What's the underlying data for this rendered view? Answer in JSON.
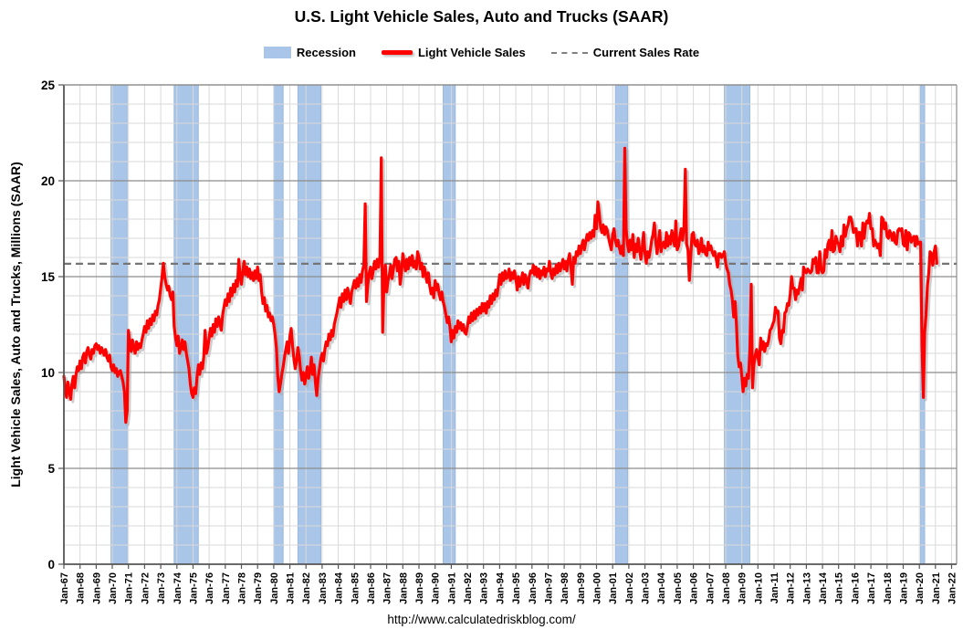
{
  "title": "U.S. Light Vehicle Sales, Auto and Trucks (SAAR)",
  "footer_url": "http://www.calculatedriskblog.com/",
  "legend": [
    {
      "label": "Recession",
      "type": "band"
    },
    {
      "label": "Light Vehicle Sales",
      "type": "line"
    },
    {
      "label": "Current Sales Rate",
      "type": "dashed"
    }
  ],
  "colors": {
    "line": "#FF0000",
    "line_shadow": "#A8A8A8",
    "recession_fill": "#A9C5E8",
    "recession_edge": "#9BB8DE",
    "dashed": "#757575",
    "grid_minor": "#D9D9D9",
    "grid_major": "#8C8C8C",
    "axis": "#555555",
    "text": "#000000"
  },
  "chart_data": {
    "type": "line",
    "title": "U.S. Light Vehicle Sales, Auto and Trucks (SAAR)",
    "xlabel": "",
    "ylabel": "Light Vehicle Sales, Auto and Trucks, Millions (SAAR)",
    "ylim": [
      0,
      25
    ],
    "y_major_ticks": [
      0,
      5,
      10,
      15,
      20,
      25
    ],
    "y_minor_step": 1,
    "grid": "both",
    "legend_position": "top",
    "x_domain": [
      1967.0,
      2022.31
    ],
    "x_tick_labels": [
      "Jan-67",
      "Jan-68",
      "Jan-69",
      "Jan-70",
      "Jan-71",
      "Jan-72",
      "Jan-73",
      "Jan-74",
      "Jan-75",
      "Jan-76",
      "Jan-77",
      "Jan-78",
      "Jan-79",
      "Jan-80",
      "Jan-81",
      "Jan-82",
      "Jan-83",
      "Jan-84",
      "Jan-85",
      "Jan-86",
      "Jan-87",
      "Jan-88",
      "Jan-89",
      "Jan-90",
      "Jan-91",
      "Jan-92",
      "Jan-93",
      "Jan-94",
      "Jan-95",
      "Jan-96",
      "Jan-97",
      "Jan-98",
      "Jan-99",
      "Jan-00",
      "Jan-01",
      "Jan-02",
      "Jan-03",
      "Jan-04",
      "Jan-05",
      "Jan-06",
      "Jan-07",
      "Jan-08",
      "Jan-09",
      "Jan-10",
      "Jan-11",
      "Jan-12",
      "Jan-13",
      "Jan-14",
      "Jan-15",
      "Jan-16",
      "Jan-17",
      "Jan-18",
      "Jan-19",
      "Jan-20",
      "Jan-21",
      "Jan-22"
    ],
    "current_sales_rate": 15.67,
    "recessions": [
      [
        1969.92,
        1970.92
      ],
      [
        1973.83,
        1975.33
      ],
      [
        1980.0,
        1980.58
      ],
      [
        1981.5,
        1982.92
      ],
      [
        1990.5,
        1991.25
      ],
      [
        2001.17,
        2001.92
      ],
      [
        2007.92,
        2009.5
      ],
      [
        2020.08,
        2020.33
      ]
    ],
    "series": [
      {
        "name": "Light Vehicle Sales",
        "cadence": "monthly",
        "units": "millions, SAAR",
        "values_by_year": {
          "1967": [
            9.8,
            9.1,
            8.7,
            9.5,
            9.0,
            8.6,
            9.4,
            9.8,
            9.2,
            9.9,
            10.3,
            10.1
          ],
          "1968": [
            10.6,
            10.2,
            10.8,
            11.0,
            10.5,
            11.1,
            11.3,
            10.9,
            10.7,
            11.2,
            11.0,
            11.4
          ],
          "1969": [
            11.5,
            11.2,
            11.4,
            11.0,
            11.3,
            11.1,
            10.9,
            11.2,
            10.8,
            10.6,
            10.9,
            10.3
          ],
          "1970": [
            10.1,
            10.4,
            10.0,
            10.2,
            9.8,
            10.0,
            10.1,
            9.8,
            9.5,
            9.0,
            7.4,
            8.0
          ],
          "1971": [
            12.2,
            11.5,
            11.1,
            11.7,
            11.3,
            11.0,
            11.6,
            11.2,
            11.5,
            11.3,
            11.7,
            12.0
          ],
          "1972": [
            12.4,
            12.1,
            12.7,
            12.3,
            12.8,
            12.5,
            13.0,
            12.7,
            13.2,
            13.0,
            13.5,
            13.8
          ],
          "1973": [
            14.4,
            15.0,
            15.7,
            15.0,
            14.6,
            14.3,
            14.5,
            14.0,
            13.8,
            14.2,
            12.4,
            11.8
          ],
          "1974": [
            11.4,
            11.9,
            11.0,
            11.3,
            11.7,
            11.2,
            11.6,
            11.0,
            10.6,
            10.2,
            9.4,
            8.9
          ],
          "1975": [
            8.7,
            9.2,
            8.9,
            9.8,
            10.4,
            9.9,
            10.5,
            10.2,
            10.8,
            12.2,
            11.0,
            11.3
          ],
          "1976": [
            11.8,
            12.3,
            11.9,
            12.5,
            12.1,
            12.8,
            12.4,
            12.9,
            12.6,
            12.2,
            13.0,
            13.4
          ],
          "1977": [
            13.8,
            13.5,
            14.1,
            13.7,
            14.4,
            14.0,
            14.6,
            14.2,
            14.8,
            14.5,
            15.9,
            15.0
          ],
          "1978": [
            14.6,
            15.3,
            15.8,
            15.1,
            15.5,
            15.0,
            15.4,
            14.9,
            15.2,
            14.8,
            15.3,
            14.9
          ],
          "1979": [
            15.5,
            14.8,
            15.1,
            14.2,
            13.6,
            13.9,
            13.2,
            13.5,
            12.9,
            13.1,
            12.7,
            12.9
          ],
          "1980": [
            12.5,
            12.0,
            11.3,
            9.8,
            9.0,
            9.4,
            9.9,
            10.3,
            10.8,
            11.2,
            11.6,
            11.0
          ],
          "1981": [
            11.9,
            12.3,
            11.4,
            10.7,
            10.2,
            10.6,
            11.3,
            10.8,
            10.1,
            9.6,
            10.0,
            9.4
          ],
          "1982": [
            9.8,
            10.3,
            9.7,
            10.1,
            10.8,
            9.9,
            10.4,
            9.5,
            8.8,
            9.7,
            10.2,
            10.7
          ],
          "1983": [
            11.0,
            10.6,
            11.2,
            11.6,
            11.4,
            12.0,
            11.7,
            12.2,
            11.9,
            12.5,
            12.8,
            13.1
          ],
          "1984": [
            13.5,
            13.9,
            13.4,
            14.1,
            13.7,
            14.3,
            13.8,
            14.4,
            14.0,
            13.6,
            14.2,
            14.5
          ],
          "1985": [
            14.8,
            14.4,
            14.9,
            14.5,
            15.1,
            14.7,
            15.3,
            15.6,
            18.8,
            13.7,
            14.6,
            15.2
          ],
          "1986": [
            15.5,
            14.9,
            15.3,
            15.8,
            15.4,
            15.9,
            15.5,
            16.1,
            21.2,
            12.1,
            14.8,
            15.6
          ],
          "1987": [
            14.2,
            14.8,
            15.1,
            15.6,
            14.9,
            15.4,
            15.9,
            16.0,
            15.3,
            15.8,
            14.6,
            15.2
          ],
          "1988": [
            16.2,
            15.7,
            15.3,
            15.9,
            15.4,
            16.0,
            15.6,
            16.1,
            15.5,
            15.8,
            15.4,
            16.3
          ],
          "1989": [
            16.0,
            15.4,
            15.7,
            15.0,
            15.5,
            15.1,
            14.7,
            15.2,
            14.5,
            14.1,
            14.4,
            13.9
          ],
          "1990": [
            14.8,
            14.3,
            14.6,
            14.1,
            13.8,
            14.2,
            13.7,
            13.4,
            13.0,
            12.6,
            12.9,
            12.4
          ],
          "1991": [
            11.6,
            12.2,
            11.8,
            12.4,
            12.1,
            12.7,
            12.3,
            12.6,
            12.2,
            12.5,
            12.1,
            12.0
          ],
          "1992": [
            12.4,
            12.9,
            12.6,
            13.1,
            12.7,
            13.2,
            12.8,
            13.3,
            13.0,
            13.4,
            13.1,
            13.6
          ],
          "1993": [
            13.2,
            13.6,
            13.1,
            13.7,
            13.4,
            14.0,
            13.6,
            14.1,
            13.8,
            14.3,
            14.0,
            14.5
          ],
          "1994": [
            15.1,
            14.6,
            15.2,
            14.8,
            15.3,
            14.9,
            15.0,
            15.4,
            14.8,
            15.2,
            14.9,
            15.3
          ],
          "1995": [
            14.9,
            14.3,
            15.0,
            14.5,
            14.8,
            15.2,
            14.6,
            15.1,
            14.8,
            14.4,
            15.0,
            15.3
          ],
          "1996": [
            15.2,
            15.6,
            15.1,
            15.5,
            15.0,
            15.4,
            14.9,
            15.3,
            15.1,
            15.5,
            15.0,
            15.4
          ],
          "1997": [
            15.3,
            15.8,
            15.2,
            14.9,
            15.4,
            15.1,
            15.6,
            15.2,
            15.7,
            15.3,
            15.6,
            15.9
          ],
          "1998": [
            15.4,
            15.8,
            15.3,
            15.9,
            16.2,
            15.5,
            14.6,
            16.0,
            15.7,
            16.3,
            16.1,
            16.6
          ],
          "1999": [
            16.2,
            16.6,
            16.9,
            16.4,
            16.8,
            17.2,
            16.9,
            17.3,
            17.0,
            17.4,
            17.1,
            18.2
          ],
          "2000": [
            17.5,
            18.9,
            18.3,
            17.6,
            17.3,
            17.7,
            17.2,
            17.6,
            17.4,
            17.0,
            16.7,
            16.4
          ],
          "2001": [
            17.2,
            17.5,
            16.9,
            16.6,
            16.9,
            16.5,
            16.2,
            16.6,
            16.1,
            21.7,
            17.5,
            16.7
          ],
          "2002": [
            16.3,
            16.9,
            16.4,
            17.2,
            16.0,
            16.7,
            16.3,
            17.0,
            16.4,
            15.9,
            16.5,
            17.3
          ],
          "2003": [
            16.2,
            15.7,
            16.3,
            16.0,
            16.4,
            16.9,
            17.2,
            17.8,
            16.9,
            16.2,
            16.8,
            17.4
          ],
          "2004": [
            16.3,
            16.7,
            16.8,
            16.5,
            17.3,
            16.6,
            17.1,
            16.7,
            17.4,
            17.0,
            16.6,
            17.9
          ],
          "2005": [
            16.4,
            16.6,
            17.1,
            17.5,
            16.9,
            17.6,
            20.6,
            16.7,
            16.4,
            14.8,
            16.0,
            17.2
          ],
          "2006": [
            17.3,
            16.7,
            16.6,
            16.9,
            16.2,
            16.4,
            17.0,
            16.3,
            16.6,
            16.2,
            16.1,
            16.8
          ],
          "2007": [
            16.4,
            16.6,
            16.3,
            16.1,
            16.3,
            15.9,
            15.5,
            16.2,
            16.2,
            16.0,
            16.1,
            16.3
          ],
          "2008": [
            15.7,
            15.4,
            15.2,
            14.6,
            14.3,
            13.8,
            12.9,
            13.7,
            12.5,
            10.9,
            10.3,
            10.5
          ],
          "2009": [
            9.8,
            9.0,
            9.7,
            9.3,
            9.9,
            9.7,
            11.2,
            14.6,
            9.2,
            10.4,
            10.9,
            11.2
          ],
          "2010": [
            10.8,
            10.4,
            11.8,
            11.2,
            11.6,
            11.1,
            11.5,
            11.4,
            11.7,
            12.2,
            12.3,
            12.5
          ],
          "2011": [
            12.7,
            13.4,
            13.1,
            13.2,
            11.8,
            11.5,
            12.2,
            12.1,
            13.1,
            13.2,
            13.6,
            13.5
          ],
          "2012": [
            14.1,
            15.0,
            14.4,
            14.4,
            13.8,
            14.3,
            14.1,
            14.5,
            14.9,
            14.3,
            15.5,
            15.3
          ],
          "2013": [
            15.2,
            15.4,
            15.3,
            15.2,
            15.3,
            15.9,
            15.7,
            16.0,
            15.2,
            15.2,
            16.3,
            15.4
          ],
          "2014": [
            15.2,
            15.3,
            16.4,
            16.0,
            16.7,
            16.9,
            16.4,
            17.4,
            16.3,
            16.4,
            17.1,
            16.8
          ],
          "2015": [
            16.7,
            16.3,
            17.1,
            16.6,
            17.7,
            17.1,
            17.5,
            17.7,
            18.1,
            18.1,
            17.8,
            17.3
          ],
          "2016": [
            17.5,
            17.5,
            16.6,
            17.3,
            17.3,
            16.6,
            17.8,
            17.0,
            17.7,
            17.9,
            17.8,
            18.3
          ],
          "2017": [
            17.5,
            17.5,
            16.6,
            16.9,
            16.7,
            16.5,
            16.7,
            16.1,
            18.1,
            18.0,
            17.5,
            17.8
          ],
          "2018": [
            17.1,
            17.0,
            17.4,
            17.2,
            16.9,
            17.3,
            16.8,
            16.7,
            17.4,
            17.5,
            17.4,
            17.5
          ],
          "2019": [
            16.7,
            16.6,
            17.4,
            16.4,
            17.3,
            17.2,
            16.8,
            17.0,
            17.1,
            16.6,
            17.1,
            16.7
          ],
          "2020": [
            16.8,
            16.8,
            11.4,
            8.7,
            12.1,
            13.0,
            14.5,
            15.2,
            16.3,
            16.2,
            15.6,
            16.3
          ],
          "2021": [
            16.6,
            15.7
          ]
        }
      }
    ]
  }
}
